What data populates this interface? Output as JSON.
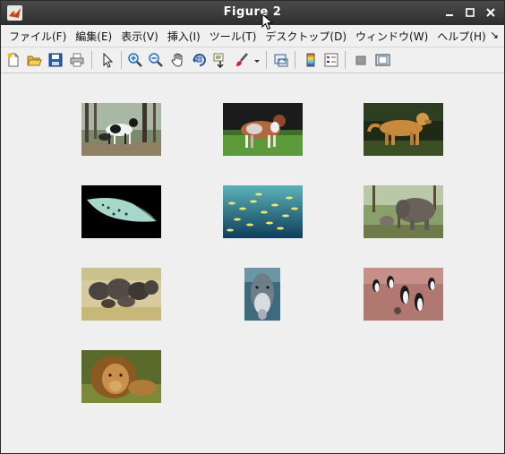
{
  "window": {
    "title": "Figure 2"
  },
  "menu": {
    "items": [
      "ファイル(F)",
      "編集(E)",
      "表示(V)",
      "挿入(I)",
      "ツール(T)",
      "デスクトップ(D)",
      "ウィンドウ(W)",
      "ヘルプ(H)"
    ],
    "overflow": "↘"
  },
  "toolbar": {
    "tools": [
      "new-figure",
      "open-file",
      "save",
      "print",
      "select",
      "zoom-in",
      "zoom-out",
      "pan",
      "rotate-3d",
      "data-cursor",
      "brush",
      "brush-dropdown",
      "link-plot",
      "insert-colorbar",
      "insert-legend",
      "hide-plot-tools",
      "show-plot-tools"
    ]
  },
  "images": [
    {
      "name": "dogs-forest"
    },
    {
      "name": "australian-shepherd"
    },
    {
      "name": "golden-retriever"
    },
    {
      "name": "stingray"
    },
    {
      "name": "fish-school"
    },
    {
      "name": "elephant-calf"
    },
    {
      "name": "elephant-herd"
    },
    {
      "name": "dolphin"
    },
    {
      "name": "penguins"
    },
    {
      "name": "lion"
    }
  ]
}
